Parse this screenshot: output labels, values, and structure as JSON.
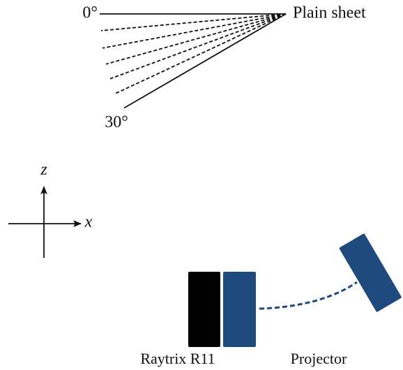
{
  "angles": {
    "start": "0°",
    "end": "30°"
  },
  "target": {
    "label": "Plain sheet"
  },
  "axes": {
    "vertical": "z",
    "horizontal": "x"
  },
  "devices": {
    "camera": "Raytrix R11",
    "projector": "Projector"
  }
}
